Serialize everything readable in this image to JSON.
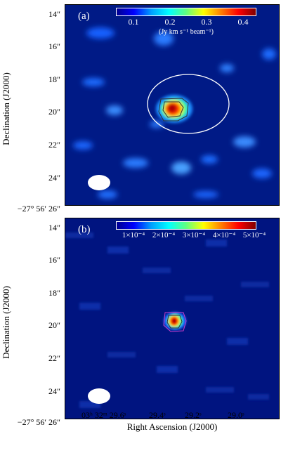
{
  "panel_a": {
    "label": "(a)",
    "colorbar_ticks": [
      "0.1",
      "0.2",
      "0.3",
      "0.4"
    ],
    "colorbar_unit": "(Jy km s⁻¹ beam⁻¹)"
  },
  "panel_b": {
    "label": "(b)",
    "colorbar_ticks": [
      "1×10⁻⁴",
      "2×10⁻⁴",
      "3×10⁻⁴",
      "4×10⁻⁴",
      "5×10⁻⁴"
    ]
  },
  "y_axis": {
    "title": "Declination (J2000)",
    "ticks": [
      "14″",
      "16″",
      "18″",
      "20″",
      "22″",
      "24″",
      "−27° 56′ 26″"
    ]
  },
  "x_axis": {
    "title": "Right Ascension (J2000)",
    "ticks": [
      "03ʰ 32ᵐ 29.6ˢ",
      "29.4ˢ",
      "29.2ˢ",
      "29.0ˢ"
    ]
  }
}
